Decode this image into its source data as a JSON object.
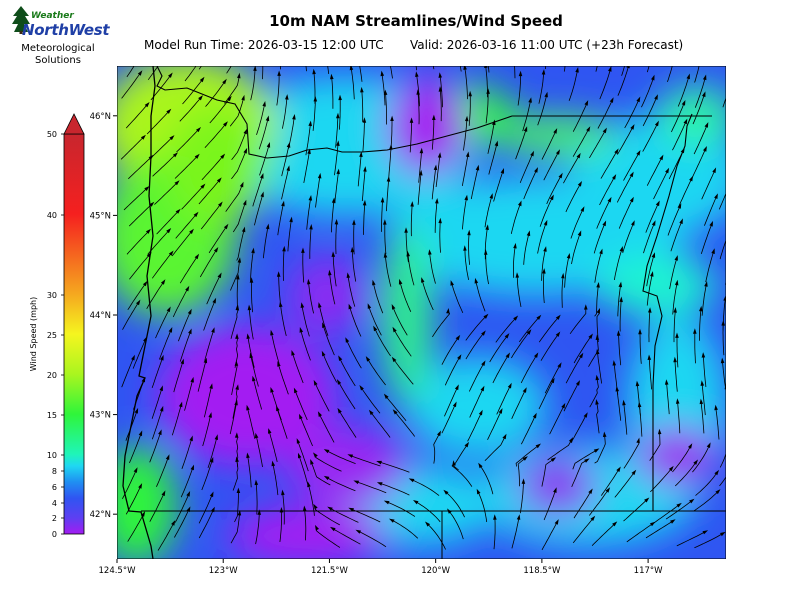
{
  "logo": {
    "top_word": "Weather",
    "brand_word": "NorthWest",
    "subtitle": "Meteorological\nSolutions"
  },
  "title": "10m NAM Streamlines/Wind Speed",
  "model_run": "Model Run Time: 2026-03-15 12:00 UTC",
  "valid_time": "Valid: 2026-03-16 11:00 UTC  (+23h Forecast)",
  "colorbar": {
    "label": "Wind Speed (mph)",
    "ticks": [
      "0",
      "2",
      "4",
      "6",
      "8",
      "10",
      "15",
      "20",
      "25",
      "30",
      "40",
      "50"
    ],
    "tick_values": [
      0,
      2,
      4,
      6,
      8,
      10,
      15,
      20,
      25,
      30,
      40,
      50
    ],
    "colors": [
      "#a31cf2",
      "#6a3cf2",
      "#2f55f2",
      "#1f8ff2",
      "#1fd7f2",
      "#1ff5b8",
      "#2ff53a",
      "#aaf51f",
      "#f5f51f",
      "#f5c81f",
      "#f57a1f",
      "#f5201f",
      "#c01f2a"
    ]
  },
  "map": {
    "lat_labels": [
      "46°N",
      "45°N",
      "44°N",
      "43°N",
      "42°N"
    ],
    "lon_labels": [
      "124.5°W",
      "123°W",
      "121.5°W",
      "120°W",
      "118.5°W",
      "117°W"
    ],
    "lon_range": [
      -124.5,
      -115.9
    ],
    "lat_range": [
      41.55,
      46.5
    ]
  }
}
